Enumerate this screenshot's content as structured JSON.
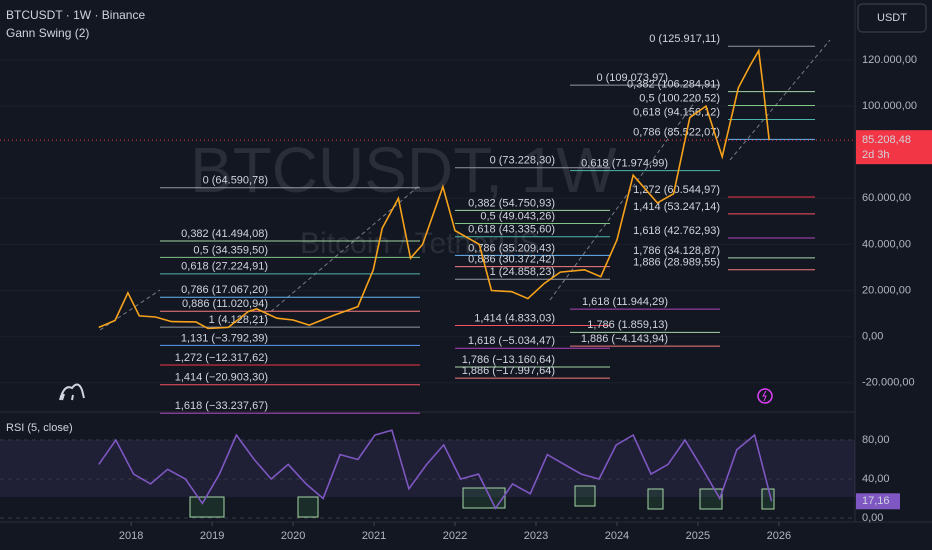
{
  "header": {
    "symbol": "BTCUSDT · 1W · Binance",
    "indicator": "Gann Swing (2)",
    "currency_button": "USDT",
    "watermark": "BTCUSDT, 1W",
    "watermark_sub": "Bitcoin / TetherUS"
  },
  "chart_data": [
    {
      "type": "line",
      "title": "BTCUSDT",
      "color": "#f7a21b",
      "x": [
        2017.6,
        2017.8,
        2017.96,
        2018.1,
        2018.3,
        2018.5,
        2018.8,
        2018.95,
        2019.2,
        2019.45,
        2019.55,
        2019.8,
        2020.0,
        2020.2,
        2020.5,
        2020.8,
        2020.99,
        2021.1,
        2021.3,
        2021.45,
        2021.6,
        2021.85,
        2022.0,
        2022.3,
        2022.45,
        2022.7,
        2022.9,
        2023.1,
        2023.3,
        2023.6,
        2023.8,
        2024.0,
        2024.2,
        2024.5,
        2024.7,
        2024.9,
        2025.1,
        2025.3,
        2025.5,
        2025.65,
        2025.75,
        2025.8,
        2025.88
      ],
      "values": [
        4000,
        7000,
        19000,
        9000,
        8500,
        6500,
        6400,
        3500,
        4000,
        11000,
        12000,
        8000,
        7200,
        5000,
        9200,
        13000,
        29000,
        47000,
        60000,
        34000,
        40000,
        65000,
        46000,
        40000,
        20000,
        19500,
        16500,
        23000,
        28000,
        29000,
        26000,
        42000,
        70000,
        58000,
        62000,
        95000,
        100000,
        78000,
        108000,
        118000,
        124000,
        110000,
        85208.48
      ],
      "last_price_label": "85.208,48",
      "countdown": "2d 3h",
      "xlim": [
        2016.38,
        2026.94
      ],
      "xticks": [
        2018,
        2019,
        2020,
        2021,
        2022,
        2023,
        2024,
        2025,
        2026
      ],
      "ylim": [
        -34000,
        146000
      ],
      "yticks": [
        {
          "value": 120000,
          "label": "120.000,00"
        },
        {
          "value": 100000,
          "label": "100.000,00"
        },
        {
          "value": 60000,
          "label": "60.000,00"
        },
        {
          "value": 40000,
          "label": "40.000,00"
        },
        {
          "value": 20000,
          "label": "20.000,00"
        },
        {
          "value": 0,
          "label": "0,00"
        },
        {
          "value": -20000,
          "label": "-20.000,00"
        }
      ],
      "grid": true,
      "fib_groups": [
        {
          "levels": [
            {
              "label": "0 (64.590,78)",
              "price": 64590.78,
              "color": "#9598a1"
            },
            {
              "label": "0,382 (41.494,08)",
              "price": 41494.08,
              "color": "#a5d6a7"
            },
            {
              "label": "0,5 (34.359,50)",
              "price": 34359.5,
              "color": "#81c784"
            },
            {
              "label": "0,618 (27.224,91)",
              "price": 27224.91,
              "color": "#4db6ac"
            },
            {
              "label": "0,786 (17.067,20)",
              "price": 17067.2,
              "color": "#64b5f6"
            },
            {
              "label": "0,886 (11.020,94)",
              "price": 11020.94,
              "color": "#f77c80"
            },
            {
              "label": "1 (4.128,21)",
              "price": 4128.21,
              "color": "#9598a1"
            },
            {
              "label": "1,131 (−3.792,39)",
              "price": -3792.39,
              "color": "#5b9cf6"
            },
            {
              "label": "1,272 (−12.317,62)",
              "price": -12317.62,
              "color": "#f23645"
            },
            {
              "label": "1,414 (−20.903,30)",
              "price": -20903.3,
              "color": "#f7525f"
            },
            {
              "label": "1,618 (−33.237,67)",
              "price": -33237.67,
              "color": "#ab47bc"
            }
          ]
        },
        {
          "levels": [
            {
              "label": "0 (73.228,30)",
              "price": 73228.3,
              "color": "#9598a1"
            },
            {
              "label": "0,382 (54.750,93)",
              "price": 54750.93,
              "color": "#a5d6a7"
            },
            {
              "label": "0,5 (49.043,26)",
              "price": 49043.26,
              "color": "#81c784"
            },
            {
              "label": "0,618 (43.335,60)",
              "price": 43335.6,
              "color": "#4db6ac"
            },
            {
              "label": "0,786 (35.209,43)",
              "price": 35209.43,
              "color": "#64b5f6"
            },
            {
              "label": "0,886 (30.372,42)",
              "price": 30372.42,
              "color": "#f77c80"
            },
            {
              "label": "1 (24.858,23)",
              "price": 24858.23,
              "color": "#9598a1"
            },
            {
              "label": "1,414 (4.833,03)",
              "price": 4833.03,
              "color": "#f7525f"
            },
            {
              "label": "1,618 (−5.034,47)",
              "price": -5034.47,
              "color": "#ab47bc"
            },
            {
              "label": "1,786 (−13.160,64)",
              "price": -13160.64,
              "color": "#a5d6a7"
            },
            {
              "label": "1,886 (−17.997,64)",
              "price": -17997.64,
              "color": "#f77c80"
            }
          ]
        },
        {
          "levels": [
            {
              "label": "0 (109.073,97)",
              "price": 109073.97,
              "color": "#9598a1"
            },
            {
              "label": "0,618 (71.974,99)",
              "price": 71974.99,
              "color": "#4db6ac"
            },
            {
              "label": "1,618 (11.944,29)",
              "price": 11944.29,
              "color": "#ab47bc"
            },
            {
              "label": "1,786 (1.859,13)",
              "price": 1859.13,
              "color": "#a5d6a7"
            },
            {
              "label": "1,886 (−4.143,94)",
              "price": -4143.94,
              "color": "#f77c80"
            }
          ]
        },
        {
          "levels": [
            {
              "label": "0 (125.917,11)",
              "price": 125917.11,
              "color": "#9598a1"
            },
            {
              "label": "0,382 (106.284,91)",
              "price": 106284.91,
              "color": "#a5d6a7"
            },
            {
              "label": "0,5 (100.220,52)",
              "price": 100220.52,
              "color": "#81c784"
            },
            {
              "label": "0,618 (94.156,12)",
              "price": 94156.12,
              "color": "#4db6ac"
            },
            {
              "label": "0,786 (85.522,07)",
              "price": 85522.07,
              "color": "#64b5f6"
            },
            {
              "label": "1,272 (60.544,97)",
              "price": 60544.97,
              "color": "#f23645"
            },
            {
              "label": "1,414 (53.247,14)",
              "price": 53247.14,
              "color": "#f7525f"
            },
            {
              "label": "1,618 (42.762,93)",
              "price": 42762.93,
              "color": "#ab47bc"
            },
            {
              "label": "1,786 (34.128,87)",
              "price": 34128.87,
              "color": "#a5d6a7"
            },
            {
              "label": "1,886 (28.989,55)",
              "price": 28989.55,
              "color": "#f77c80"
            }
          ]
        }
      ]
    },
    {
      "type": "line",
      "title": "RSI (5, close)",
      "color": "#7e57c2",
      "x": [
        2017.6,
        2017.81,
        2018.03,
        2018.24,
        2018.45,
        2018.67,
        2018.88,
        2019.09,
        2019.3,
        2019.52,
        2019.73,
        2019.94,
        2020.16,
        2020.37,
        2020.58,
        2020.8,
        2021.01,
        2021.22,
        2021.43,
        2021.65,
        2021.86,
        2022.07,
        2022.29,
        2022.5,
        2022.71,
        2022.93,
        2023.14,
        2023.35,
        2023.56,
        2023.78,
        2023.99,
        2024.2,
        2024.42,
        2024.63,
        2024.84,
        2025.06,
        2025.27,
        2025.48,
        2025.7,
        2025.91
      ],
      "values": [
        55,
        80,
        45,
        35,
        50,
        40,
        15,
        45,
        85,
        60,
        40,
        55,
        35,
        20,
        65,
        60,
        85,
        90,
        30,
        55,
        75,
        40,
        45,
        10,
        35,
        25,
        65,
        55,
        45,
        40,
        75,
        85,
        45,
        55,
        80,
        50,
        20,
        70,
        85,
        17.16
      ],
      "value_labels": [
        null,
        null,
        null,
        null,
        null,
        null,
        null,
        null,
        null,
        null,
        null,
        null,
        null,
        null,
        null,
        null,
        null,
        null,
        null,
        null,
        null,
        null,
        null,
        null,
        null,
        null,
        null,
        null,
        null,
        null,
        null,
        null,
        null,
        null,
        null,
        null,
        null,
        null,
        null,
        "17,16"
      ],
      "ylim": [
        -2,
        105.6
      ],
      "yticks": [
        {
          "value": 80,
          "label": "80,00"
        },
        {
          "value": 40,
          "label": "40,00"
        },
        {
          "value": 0,
          "label": "0,00"
        }
      ],
      "grid": true
    }
  ]
}
